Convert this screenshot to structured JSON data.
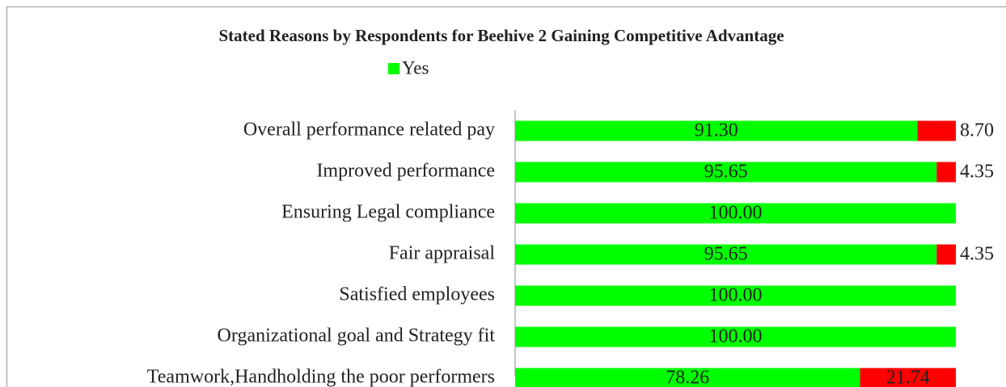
{
  "chart_data": {
    "type": "stacked_barh",
    "title": "Stated Reasons by Respondents for Beehive 2 Gaining Competitive Advantage",
    "categories": [
      "Overall performance related pay",
      "Improved performance",
      "Ensuring Legal compliance",
      "Fair appraisal",
      "Satisfied employees",
      "Organizational goal and Strategy fit",
      "Teamwork,Handholding the poor performers"
    ],
    "series": [
      {
        "name": "Yes",
        "color": "#00ff00",
        "values": [
          91.3,
          95.65,
          100,
          95.65,
          100,
          100,
          78.26
        ],
        "value_labels": [
          "91.30",
          "95.65",
          "100.00",
          "95.65",
          "100.00",
          "100.00",
          "78.26"
        ]
      },
      {
        "color": "#ff0000",
        "values": [
          8.7,
          4.35,
          null,
          4.35,
          null,
          null,
          21.74
        ],
        "value_labels": [
          "8.70",
          "4.35",
          null,
          "4.35",
          null,
          null,
          "21.74"
        ]
      }
    ],
    "xlim": [
      0,
      100
    ],
    "legend": "top"
  }
}
